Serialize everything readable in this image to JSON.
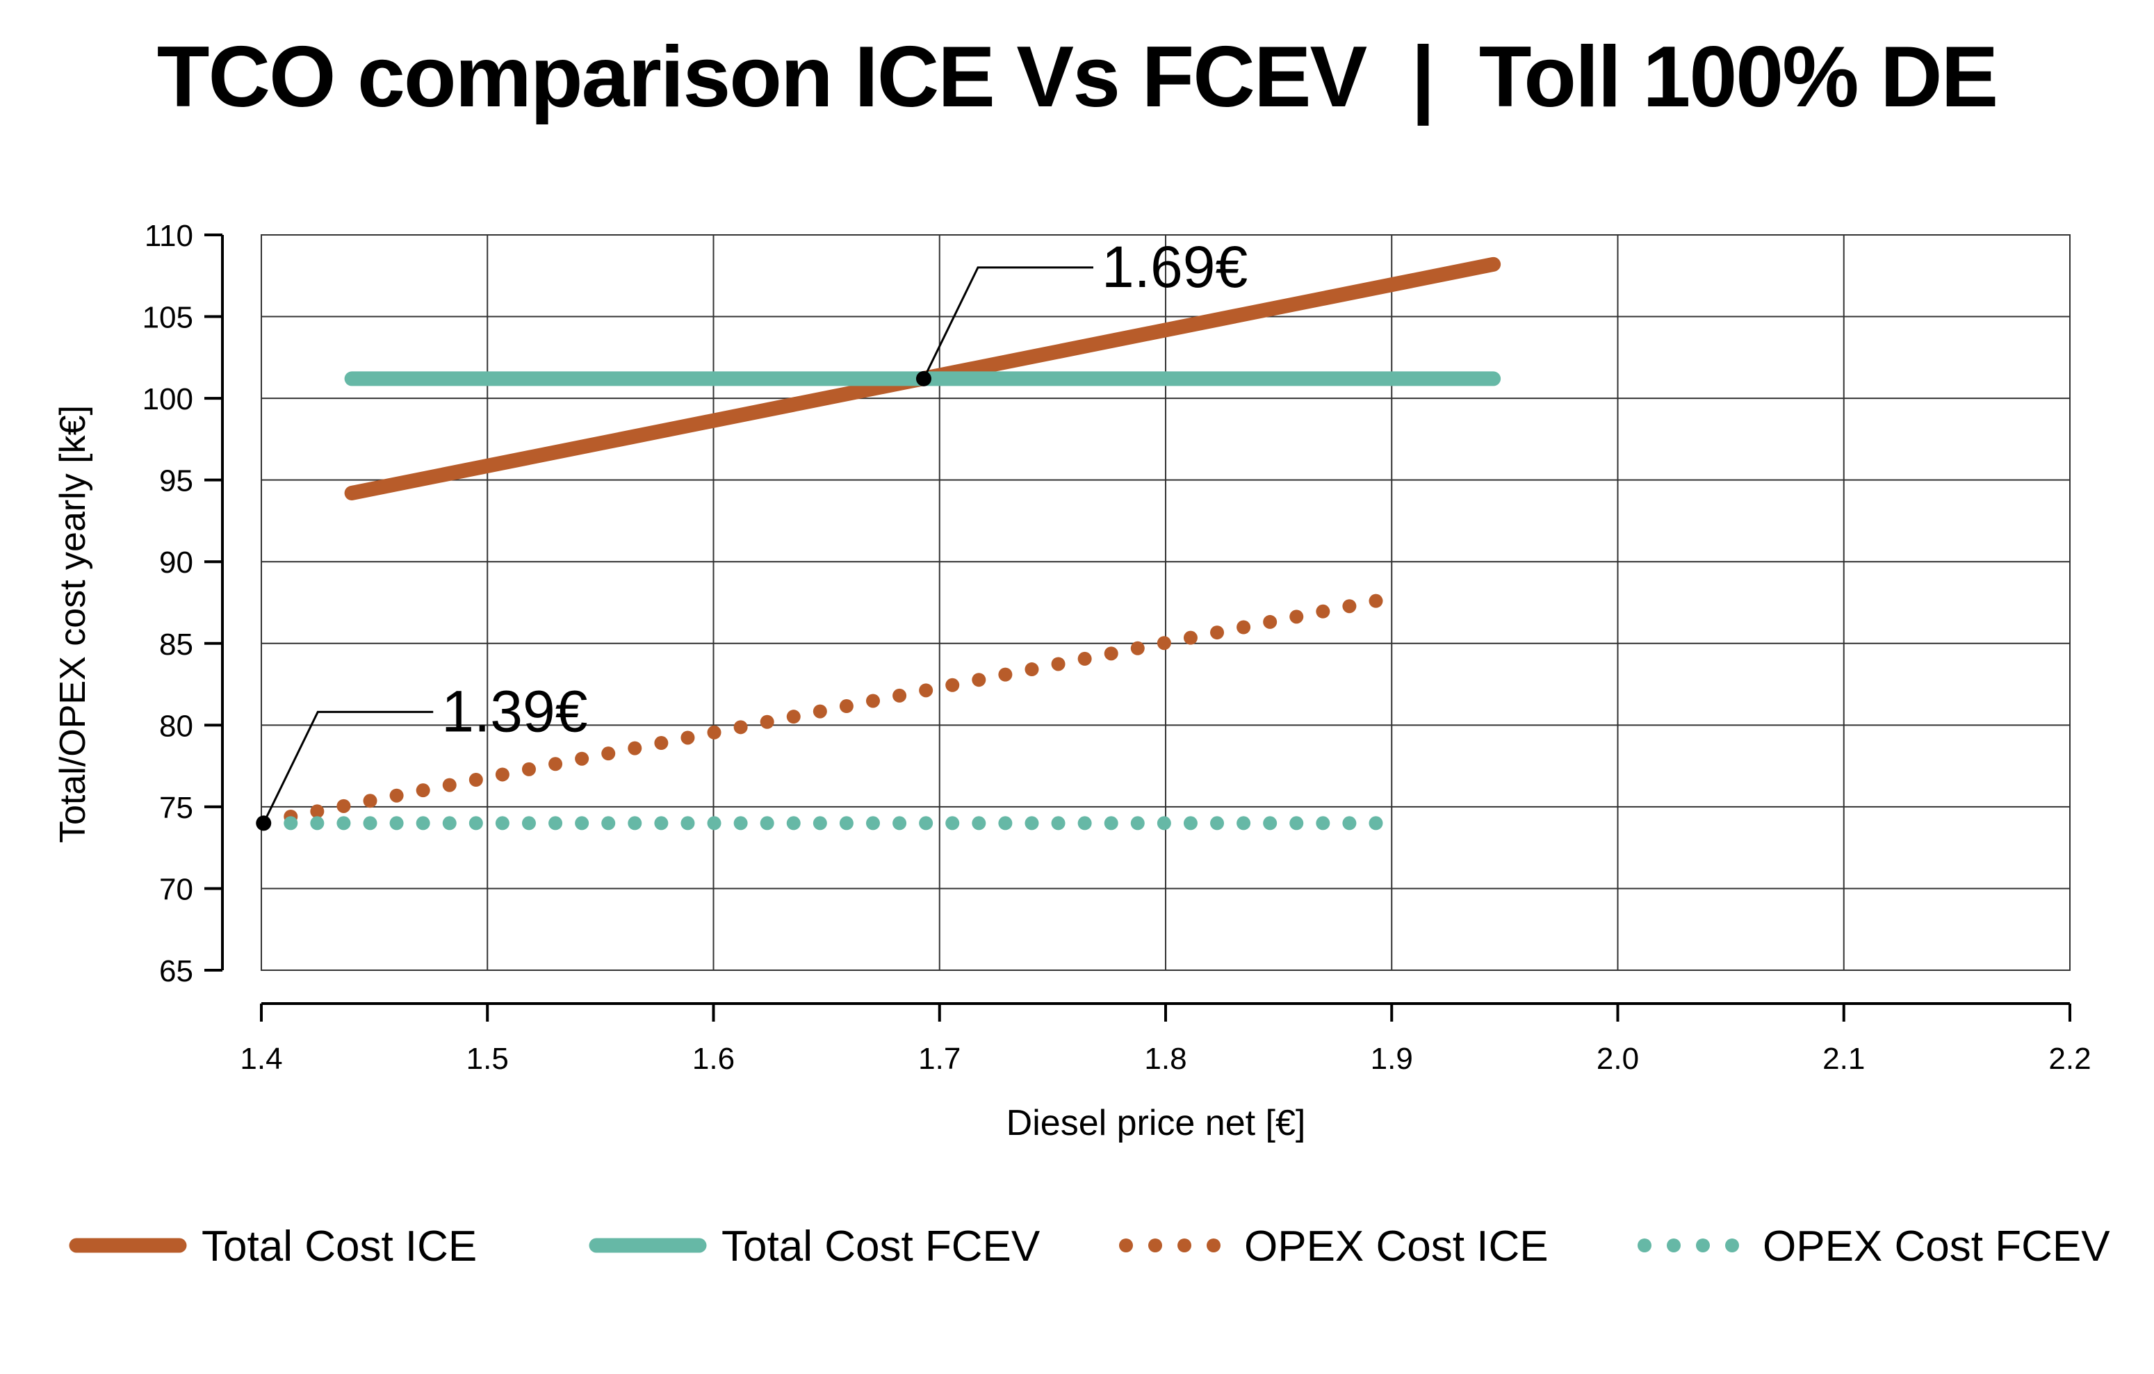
{
  "chart_data": {
    "type": "line",
    "title": "TCO comparison ICE Vs FCEV  |  Toll 100% DE",
    "xlabel": "Diesel price net [€]",
    "ylabel": "Total/OPEX cost yearly [k€]",
    "xlim": [
      1.4,
      2.2
    ],
    "ylim": [
      65,
      110
    ],
    "x_ticks": [
      "1.4",
      "1.5",
      "1.6",
      "1.7",
      "1.8",
      "1.9",
      "2.0",
      "2.1",
      "2.2"
    ],
    "y_ticks": [
      "110",
      "105",
      "100",
      "95",
      "90",
      "85",
      "80",
      "75",
      "70",
      "65"
    ],
    "grid": true,
    "legend_position": "bottom",
    "series": [
      {
        "name": "Total Cost ICE",
        "style": "solid",
        "color": "#b85c2a",
        "x": [
          1.44,
          1.945
        ],
        "y": [
          94.2,
          108.2
        ]
      },
      {
        "name": "Total Cost FCEV",
        "style": "solid",
        "color": "#66b8a6",
        "x": [
          1.44,
          1.945
        ],
        "y": [
          101.2,
          101.2
        ]
      },
      {
        "name": "OPEX Cost ICE",
        "style": "dotted",
        "color": "#b85c2a",
        "x": [
          1.413,
          1.893
        ],
        "y": [
          74.4,
          87.6
        ]
      },
      {
        "name": "OPEX Cost FCEV",
        "style": "dotted",
        "color": "#66b8a6",
        "x": [
          1.413,
          1.893
        ],
        "y": [
          74.0,
          74.0
        ]
      }
    ],
    "annotations": [
      {
        "label": "1.69€",
        "x": 1.693,
        "y": 101.2
      },
      {
        "label": "1.39€",
        "x": 1.401,
        "y": 74.0
      }
    ]
  }
}
